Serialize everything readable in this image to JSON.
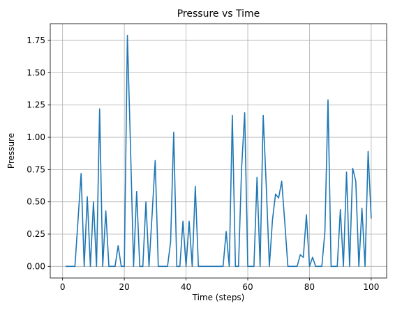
{
  "chart_data": {
    "type": "line",
    "title": "Pressure vs Time",
    "xlabel": "Time (steps)",
    "ylabel": "Pressure",
    "xlim": [
      -4,
      105
    ],
    "ylim": [
      -0.09,
      1.88
    ],
    "xticks": [
      0,
      20,
      40,
      60,
      80,
      100
    ],
    "yticks": [
      0.0,
      0.25,
      0.5,
      0.75,
      1.0,
      1.25,
      1.5,
      1.75
    ],
    "ytick_labels": [
      "0.00",
      "0.25",
      "0.50",
      "0.75",
      "1.00",
      "1.25",
      "1.50",
      "1.75"
    ],
    "grid": true,
    "line_color": "#1f77b4",
    "series": [
      {
        "x": [
          1,
          2,
          3,
          4,
          5,
          6,
          7,
          8,
          9,
          10,
          11,
          12,
          13,
          14,
          15,
          16,
          17,
          18,
          19,
          20,
          21,
          22,
          23,
          24,
          25,
          26,
          27,
          28,
          29,
          30,
          31,
          32,
          33,
          34,
          35,
          36,
          37,
          38,
          39,
          40,
          41,
          42,
          43,
          44,
          45,
          46,
          47,
          48,
          49,
          50,
          51,
          52,
          53,
          54,
          55,
          56,
          57,
          58,
          59,
          60,
          61,
          62,
          63,
          64,
          65,
          66,
          67,
          68,
          69,
          70,
          71,
          72,
          73,
          74,
          75,
          76,
          77,
          78,
          79,
          80,
          81,
          82,
          83,
          84,
          85,
          86,
          87,
          88,
          89,
          90,
          91,
          92,
          93,
          94,
          95,
          96,
          97,
          98,
          99,
          100
        ],
        "values": [
          0,
          0,
          0,
          0,
          0.36,
          0.72,
          0,
          0.54,
          0,
          0.5,
          0,
          1.22,
          0,
          0.43,
          0,
          0,
          0,
          0.16,
          0,
          0,
          1.79,
          0.93,
          0,
          0.58,
          0,
          0,
          0.5,
          0,
          0.4,
          0.82,
          0,
          0,
          0,
          0,
          0.19,
          1.04,
          0,
          0,
          0.35,
          0,
          0.35,
          0,
          0.62,
          0,
          0,
          0,
          0,
          0,
          0,
          0,
          0,
          0,
          0.27,
          0,
          1.17,
          0,
          0,
          0.76,
          1.19,
          0,
          0,
          0,
          0.69,
          0,
          1.17,
          0.62,
          0,
          0.36,
          0.56,
          0.53,
          0.66,
          0.34,
          0,
          0,
          0,
          0,
          0.09,
          0.07,
          0.4,
          0,
          0.07,
          0,
          0,
          0,
          0.27,
          1.29,
          0,
          0,
          0,
          0.44,
          0,
          0.73,
          0,
          0.76,
          0.66,
          0,
          0.45,
          0,
          0.89,
          0.37
        ]
      }
    ]
  }
}
